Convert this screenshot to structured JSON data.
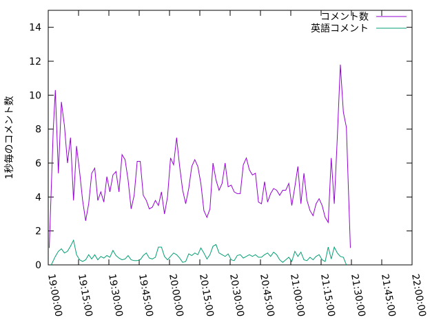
{
  "chart_data": {
    "type": "line",
    "title": "",
    "xlabel": "",
    "ylabel": "1秒毎のコメント数",
    "xlim": [
      "19:00:00",
      "22:00:00"
    ],
    "ylim": [
      0,
      15
    ],
    "x_ticks": [
      "19:00:00",
      "19:15:00",
      "19:30:00",
      "19:45:00",
      "20:00:00",
      "20:15:00",
      "20:30:00",
      "20:45:00",
      "21:00:00",
      "21:15:00",
      "21:30:00",
      "21:45:00",
      "22:00:00"
    ],
    "y_ticks": [
      0,
      2,
      4,
      6,
      8,
      10,
      12,
      14
    ],
    "grid": false,
    "legend_position": "top-right",
    "series": [
      {
        "name": "コメント数",
        "color": "#9400d3",
        "points": [
          [
            "19:00:30",
            1.0
          ],
          [
            "19:01:30",
            4.5
          ],
          [
            "19:02:30",
            8.0
          ],
          [
            "19:03:30",
            10.3
          ],
          [
            "19:05:00",
            5.4
          ],
          [
            "19:06:30",
            9.6
          ],
          [
            "19:08:00",
            8.2
          ],
          [
            "19:09:30",
            6.0
          ],
          [
            "19:11:00",
            7.5
          ],
          [
            "19:12:30",
            3.8
          ],
          [
            "19:14:00",
            7.0
          ],
          [
            "19:15:30",
            5.5
          ],
          [
            "19:17:00",
            3.8
          ],
          [
            "19:18:30",
            2.6
          ],
          [
            "19:20:00",
            3.6
          ],
          [
            "19:21:30",
            5.4
          ],
          [
            "19:23:00",
            5.7
          ],
          [
            "19:24:30",
            3.8
          ],
          [
            "19:26:00",
            4.3
          ],
          [
            "19:27:30",
            3.7
          ],
          [
            "19:29:00",
            5.2
          ],
          [
            "19:30:30",
            4.3
          ],
          [
            "19:32:00",
            5.3
          ],
          [
            "19:33:30",
            5.5
          ],
          [
            "19:35:00",
            4.3
          ],
          [
            "19:36:30",
            6.5
          ],
          [
            "19:38:00",
            6.2
          ],
          [
            "19:39:30",
            5.0
          ],
          [
            "19:41:00",
            3.3
          ],
          [
            "19:42:30",
            4.1
          ],
          [
            "19:44:00",
            6.1
          ],
          [
            "19:45:30",
            6.1
          ],
          [
            "19:47:00",
            4.1
          ],
          [
            "19:48:30",
            3.8
          ],
          [
            "19:50:00",
            3.3
          ],
          [
            "19:51:30",
            3.4
          ],
          [
            "19:53:00",
            3.8
          ],
          [
            "19:54:30",
            3.5
          ],
          [
            "19:56:00",
            4.3
          ],
          [
            "19:57:30",
            3.0
          ],
          [
            "19:59:00",
            4.0
          ],
          [
            "20:00:30",
            6.3
          ],
          [
            "20:02:00",
            5.9
          ],
          [
            "20:03:30",
            7.5
          ],
          [
            "20:05:00",
            5.8
          ],
          [
            "20:06:30",
            4.4
          ],
          [
            "20:08:00",
            3.6
          ],
          [
            "20:09:30",
            4.5
          ],
          [
            "20:11:00",
            5.8
          ],
          [
            "20:12:30",
            6.2
          ],
          [
            "20:14:00",
            5.8
          ],
          [
            "20:15:30",
            4.8
          ],
          [
            "20:17:00",
            3.2
          ],
          [
            "20:18:30",
            2.8
          ],
          [
            "20:20:00",
            3.3
          ],
          [
            "20:21:30",
            6.0
          ],
          [
            "20:23:00",
            5.0
          ],
          [
            "20:24:30",
            4.4
          ],
          [
            "20:26:00",
            4.8
          ],
          [
            "20:27:30",
            6.0
          ],
          [
            "20:29:00",
            4.6
          ],
          [
            "20:30:30",
            4.7
          ],
          [
            "20:32:00",
            4.3
          ],
          [
            "20:33:30",
            4.2
          ],
          [
            "20:35:00",
            4.2
          ],
          [
            "20:36:30",
            5.9
          ],
          [
            "20:38:00",
            6.3
          ],
          [
            "20:39:30",
            5.6
          ],
          [
            "20:41:00",
            5.3
          ],
          [
            "20:42:30",
            5.4
          ],
          [
            "20:44:00",
            3.7
          ],
          [
            "20:45:30",
            3.6
          ],
          [
            "20:47:00",
            4.9
          ],
          [
            "20:48:30",
            3.7
          ],
          [
            "20:50:00",
            4.2
          ],
          [
            "20:51:30",
            4.5
          ],
          [
            "20:53:00",
            4.4
          ],
          [
            "20:54:30",
            4.1
          ],
          [
            "20:56:00",
            4.4
          ],
          [
            "20:57:30",
            4.4
          ],
          [
            "20:59:00",
            4.8
          ],
          [
            "21:00:30",
            3.5
          ],
          [
            "21:02:00",
            4.6
          ],
          [
            "21:03:30",
            5.8
          ],
          [
            "21:05:00",
            3.6
          ],
          [
            "21:06:30",
            5.4
          ],
          [
            "21:08:00",
            3.8
          ],
          [
            "21:09:30",
            3.2
          ],
          [
            "21:11:00",
            2.9
          ],
          [
            "21:12:30",
            3.6
          ],
          [
            "21:14:00",
            3.9
          ],
          [
            "21:15:30",
            3.5
          ],
          [
            "21:17:00",
            2.8
          ],
          [
            "21:18:30",
            2.5
          ],
          [
            "21:20:00",
            6.3
          ],
          [
            "21:21:30",
            3.6
          ],
          [
            "21:23:00",
            7.5
          ],
          [
            "21:24:30",
            11.8
          ],
          [
            "21:26:00",
            9.0
          ],
          [
            "21:27:30",
            8.1
          ],
          [
            "21:28:30",
            4.5
          ],
          [
            "21:29:30",
            1.0
          ]
        ]
      },
      {
        "name": "英語コメント",
        "color": "#009e73",
        "points": [
          [
            "19:01:30",
            0.0
          ],
          [
            "19:03:30",
            0.5
          ],
          [
            "19:05:00",
            0.8
          ],
          [
            "19:06:30",
            0.95
          ],
          [
            "19:08:00",
            0.7
          ],
          [
            "19:09:30",
            0.8
          ],
          [
            "19:11:00",
            1.1
          ],
          [
            "19:12:30",
            1.45
          ],
          [
            "19:14:00",
            0.6
          ],
          [
            "19:15:30",
            0.3
          ],
          [
            "19:17:00",
            0.2
          ],
          [
            "19:18:30",
            0.3
          ],
          [
            "19:20:00",
            0.6
          ],
          [
            "19:21:30",
            0.35
          ],
          [
            "19:23:00",
            0.6
          ],
          [
            "19:24:30",
            0.3
          ],
          [
            "19:26:00",
            0.5
          ],
          [
            "19:27:30",
            0.4
          ],
          [
            "19:29:00",
            0.55
          ],
          [
            "19:30:30",
            0.45
          ],
          [
            "19:32:00",
            0.85
          ],
          [
            "19:33:30",
            0.55
          ],
          [
            "19:35:00",
            0.4
          ],
          [
            "19:36:30",
            0.3
          ],
          [
            "19:38:00",
            0.35
          ],
          [
            "19:39:30",
            0.55
          ],
          [
            "19:41:00",
            0.3
          ],
          [
            "19:42:30",
            0.25
          ],
          [
            "19:44:00",
            0.25
          ],
          [
            "19:45:30",
            0.3
          ],
          [
            "19:47:00",
            0.55
          ],
          [
            "19:48:30",
            0.7
          ],
          [
            "19:50:00",
            0.4
          ],
          [
            "19:51:30",
            0.35
          ],
          [
            "19:53:00",
            0.45
          ],
          [
            "19:54:30",
            1.05
          ],
          [
            "19:56:00",
            1.05
          ],
          [
            "19:57:30",
            0.5
          ],
          [
            "19:59:00",
            0.3
          ],
          [
            "20:00:30",
            0.5
          ],
          [
            "20:02:00",
            0.7
          ],
          [
            "20:03:30",
            0.6
          ],
          [
            "20:05:00",
            0.4
          ],
          [
            "20:06:30",
            0.15
          ],
          [
            "20:08:00",
            0.2
          ],
          [
            "20:09:30",
            0.65
          ],
          [
            "20:11:00",
            0.55
          ],
          [
            "20:12:30",
            0.7
          ],
          [
            "20:14:00",
            0.6
          ],
          [
            "20:15:30",
            1.0
          ],
          [
            "20:17:00",
            0.7
          ],
          [
            "20:18:30",
            0.35
          ],
          [
            "20:20:00",
            0.6
          ],
          [
            "20:21:30",
            1.1
          ],
          [
            "20:23:00",
            1.2
          ],
          [
            "20:24:30",
            0.7
          ],
          [
            "20:26:00",
            0.6
          ],
          [
            "20:27:30",
            0.5
          ],
          [
            "20:29:00",
            0.65
          ],
          [
            "20:30:30",
            0.3
          ],
          [
            "20:32:00",
            0.25
          ],
          [
            "20:33:30",
            0.55
          ],
          [
            "20:35:00",
            0.6
          ],
          [
            "20:36:30",
            0.4
          ],
          [
            "20:38:00",
            0.5
          ],
          [
            "20:39:30",
            0.6
          ],
          [
            "20:41:00",
            0.5
          ],
          [
            "20:42:30",
            0.6
          ],
          [
            "20:44:00",
            0.45
          ],
          [
            "20:45:30",
            0.45
          ],
          [
            "20:47:00",
            0.6
          ],
          [
            "20:48:30",
            0.7
          ],
          [
            "20:50:00",
            0.5
          ],
          [
            "20:51:30",
            0.75
          ],
          [
            "20:53:00",
            0.6
          ],
          [
            "20:54:30",
            0.3
          ],
          [
            "20:56:00",
            0.15
          ],
          [
            "20:57:30",
            0.3
          ],
          [
            "20:59:00",
            0.45
          ],
          [
            "21:00:30",
            0.2
          ],
          [
            "21:02:00",
            0.8
          ],
          [
            "21:03:30",
            0.5
          ],
          [
            "21:05:00",
            0.75
          ],
          [
            "21:06:30",
            0.3
          ],
          [
            "21:08:00",
            0.25
          ],
          [
            "21:09:30",
            0.45
          ],
          [
            "21:11:00",
            0.3
          ],
          [
            "21:12:30",
            0.5
          ],
          [
            "21:14:00",
            0.6
          ],
          [
            "21:15:30",
            0.3
          ],
          [
            "21:17:00",
            0.2
          ],
          [
            "21:18:30",
            1.05
          ],
          [
            "21:20:00",
            0.35
          ],
          [
            "21:21:30",
            1.05
          ],
          [
            "21:23:00",
            0.7
          ],
          [
            "21:24:30",
            0.5
          ],
          [
            "21:26:00",
            0.45
          ],
          [
            "21:27:30",
            0.0
          ]
        ]
      }
    ]
  }
}
